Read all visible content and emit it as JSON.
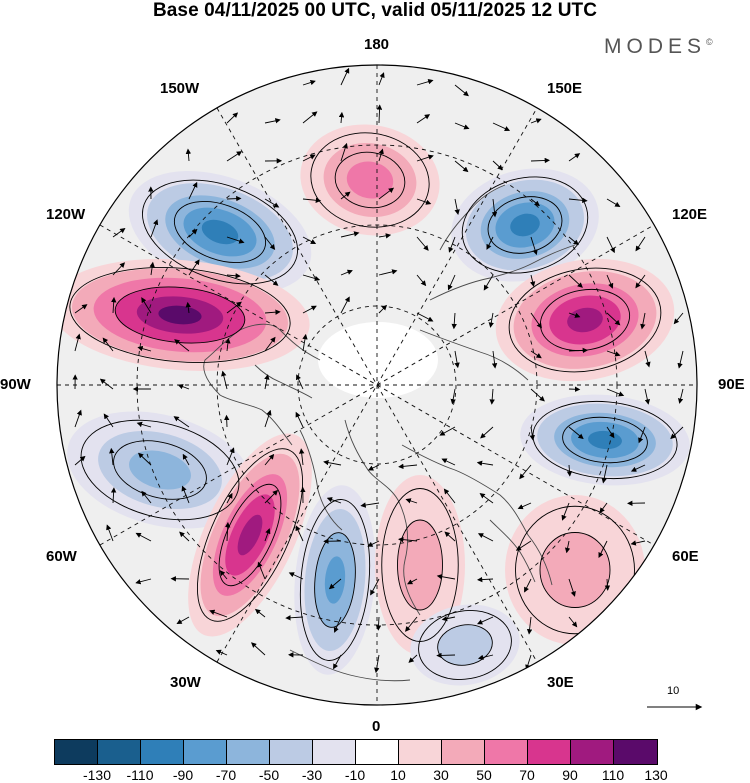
{
  "title": "Base 04/11/2025 00 UTC, valid 05/11/2025 12 UTC",
  "brand": {
    "name": "MODES",
    "mark": "©"
  },
  "map": {
    "projection": "north polar stereographic",
    "longitude_labels": {
      "top": "180",
      "bottom": "0",
      "left": "90W",
      "right": "90E",
      "upper_left_1": "150W",
      "upper_left_2": "120W",
      "lower_left_1": "60W",
      "lower_left_2": "30W",
      "upper_right_1": "150E",
      "upper_right_2": "120E",
      "lower_right_1": "60E",
      "lower_right_2": "30E"
    },
    "vector_reference": {
      "label": "10"
    }
  },
  "colorbar": {
    "ticks": [
      "-130",
      "-110",
      "-90",
      "-70",
      "-50",
      "-30",
      "-10",
      "10",
      "30",
      "50",
      "70",
      "90",
      "110",
      "130"
    ],
    "colors": [
      "#0d3b5e",
      "#1a5f8e",
      "#2f7fb8",
      "#5a9cd0",
      "#8db5dc",
      "#bccbe4",
      "#e3e2ef",
      "#ffffff",
      "#f8d5d8",
      "#f3aab9",
      "#ef77a8",
      "#d8358e",
      "#a01a7f",
      "#5a0a6a"
    ]
  },
  "anomalies": [
    {
      "name": "anomaly-negative-120W",
      "sign": "negative",
      "peak": -90
    },
    {
      "name": "anomaly-positive-105W",
      "sign": "positive",
      "peak": 110
    },
    {
      "name": "anomaly-positive-170W",
      "sign": "positive",
      "peak": 50
    },
    {
      "name": "anomaly-negative-135E",
      "sign": "negative",
      "peak": -90
    },
    {
      "name": "anomaly-positive-105E",
      "sign": "positive",
      "peak": 90
    },
    {
      "name": "anomaly-negative-80E",
      "sign": "negative",
      "peak": -90
    },
    {
      "name": "anomaly-positive-55E",
      "sign": "positive",
      "peak": 30
    },
    {
      "name": "anomaly-negative-70W",
      "sign": "negative",
      "peak": -50
    },
    {
      "name": "anomaly-positive-45W",
      "sign": "positive",
      "peak": 90
    },
    {
      "name": "anomaly-negative-15W",
      "sign": "negative",
      "peak": -70
    },
    {
      "name": "anomaly-positive-10E",
      "sign": "positive",
      "peak": 30
    },
    {
      "name": "anomaly-negative-30E",
      "sign": "negative",
      "peak": -30
    }
  ]
}
